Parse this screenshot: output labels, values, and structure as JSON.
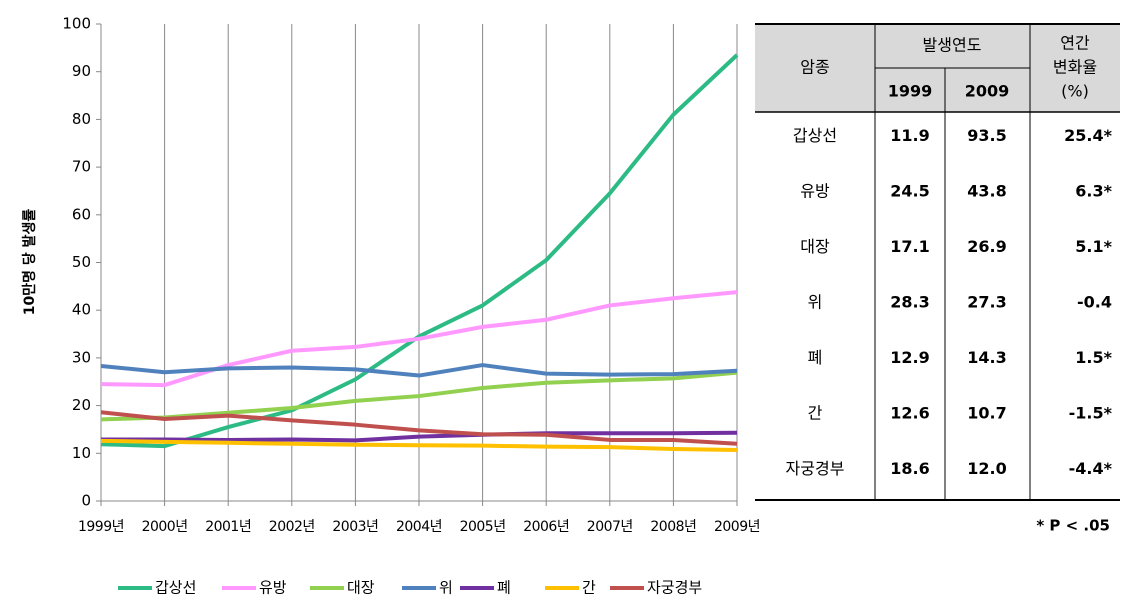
{
  "chart_data": {
    "type": "line",
    "ylabel": "10만명 당 발생률",
    "categories": [
      "1999년",
      "2000년",
      "2001년",
      "2002년",
      "2003년",
      "2004년",
      "2005년",
      "2006년",
      "2007년",
      "2008년",
      "2009년"
    ],
    "series": [
      {
        "name": "갑상선",
        "color": "#2dbb85",
        "values": [
          11.9,
          11.5,
          15.5,
          19.0,
          25.5,
          34.5,
          41.0,
          50.5,
          64.5,
          81.0,
          93.5
        ]
      },
      {
        "name": "유방",
        "color": "#ff99ff",
        "values": [
          24.5,
          24.3,
          28.5,
          31.5,
          32.3,
          34.0,
          36.5,
          38.0,
          41.0,
          42.5,
          43.8
        ]
      },
      {
        "name": "대장",
        "color": "#92d050",
        "values": [
          17.1,
          17.5,
          18.5,
          19.5,
          21.0,
          22.0,
          23.7,
          24.8,
          25.3,
          25.7,
          26.9
        ]
      },
      {
        "name": "위",
        "color": "#4f81bd",
        "values": [
          28.3,
          27.0,
          27.8,
          28.0,
          27.6,
          26.3,
          28.5,
          26.7,
          26.5,
          26.6,
          27.3
        ]
      },
      {
        "name": "폐",
        "color": "#7030a0",
        "values": [
          12.9,
          12.9,
          12.8,
          12.9,
          12.7,
          13.5,
          13.9,
          14.2,
          14.2,
          14.2,
          14.3
        ]
      },
      {
        "name": "간",
        "color": "#ffc000",
        "values": [
          12.6,
          12.4,
          12.2,
          12.0,
          11.8,
          11.7,
          11.6,
          11.4,
          11.3,
          10.9,
          10.7
        ]
      },
      {
        "name": "자궁경부",
        "color": "#c0504d",
        "values": [
          18.6,
          17.2,
          17.9,
          16.9,
          16.0,
          14.8,
          14.0,
          13.9,
          12.8,
          12.8,
          12.0
        ]
      }
    ],
    "ylim": [
      0,
      100
    ],
    "yticks": [
      0,
      10,
      20,
      30,
      40,
      50,
      60,
      70,
      80,
      90,
      100
    ],
    "grid": "x",
    "legend": "bottom"
  },
  "table": {
    "header": {
      "type": "암종",
      "year": "발생연도",
      "years": [
        "1999",
        "2009"
      ],
      "change": [
        "연간",
        "변화율",
        "(%)"
      ]
    },
    "rows": [
      [
        "갑상선",
        "11.9",
        "93.5",
        "25.4*"
      ],
      [
        "유방",
        "24.5",
        "43.8",
        "6.3*"
      ],
      [
        "대장",
        "17.1",
        "26.9",
        "5.1*"
      ],
      [
        "위",
        "28.3",
        "27.3",
        "-0.4"
      ],
      [
        "폐",
        "12.9",
        "14.3",
        "1.5*"
      ],
      [
        "간",
        "12.6",
        "10.7",
        "-1.5*"
      ],
      [
        "자궁경부",
        "18.6",
        "12.0",
        "-4.4*"
      ]
    ],
    "note": "* P < .05"
  }
}
